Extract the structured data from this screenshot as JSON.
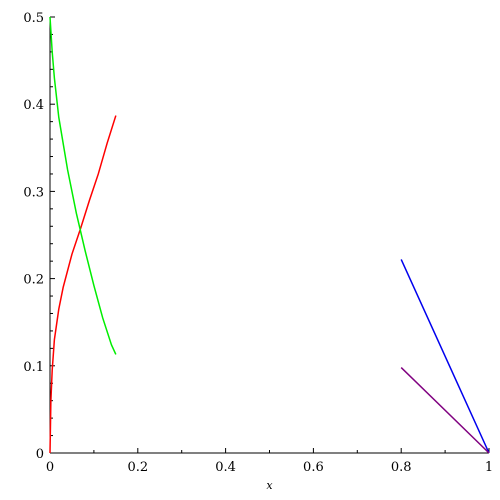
{
  "chart_data": {
    "type": "line",
    "title": "",
    "xlabel": "x",
    "ylabel": "",
    "xlim": [
      0,
      1
    ],
    "ylim": [
      0,
      0.5
    ],
    "grid": false,
    "x_ticks": [
      0,
      0.2,
      0.4,
      0.6,
      0.8,
      1
    ],
    "x_tick_labels": [
      "0",
      "0.2",
      "0.4",
      "0.6",
      "0.8",
      "1"
    ],
    "y_ticks": [
      0,
      0.1,
      0.2,
      0.3,
      0.4,
      0.5
    ],
    "y_tick_labels": [
      "0",
      "0.1",
      "0.2",
      "0.3",
      "0.4",
      "0.5"
    ],
    "series": [
      {
        "color": "#ff0000",
        "points": [
          [
            0,
            0
          ],
          [
            0.002,
            0.06
          ],
          [
            0.005,
            0.095
          ],
          [
            0.01,
            0.13
          ],
          [
            0.02,
            0.165
          ],
          [
            0.03,
            0.19
          ],
          [
            0.05,
            0.228
          ],
          [
            0.07,
            0.258
          ],
          [
            0.09,
            0.29
          ],
          [
            0.11,
            0.32
          ],
          [
            0.13,
            0.355
          ],
          [
            0.15,
            0.387
          ]
        ]
      },
      {
        "color": "#00ee00",
        "points": [
          [
            0,
            0.5
          ],
          [
            0.005,
            0.46
          ],
          [
            0.01,
            0.43
          ],
          [
            0.02,
            0.385
          ],
          [
            0.04,
            0.325
          ],
          [
            0.06,
            0.275
          ],
          [
            0.08,
            0.232
          ],
          [
            0.1,
            0.192
          ],
          [
            0.12,
            0.155
          ],
          [
            0.14,
            0.124
          ],
          [
            0.15,
            0.113
          ]
        ]
      },
      {
        "color": "#0000ee",
        "points": [
          [
            0.8,
            0.222
          ],
          [
            1,
            0
          ]
        ]
      },
      {
        "color": "#800080",
        "points": [
          [
            0.8,
            0.098
          ],
          [
            1,
            0
          ]
        ]
      }
    ]
  }
}
